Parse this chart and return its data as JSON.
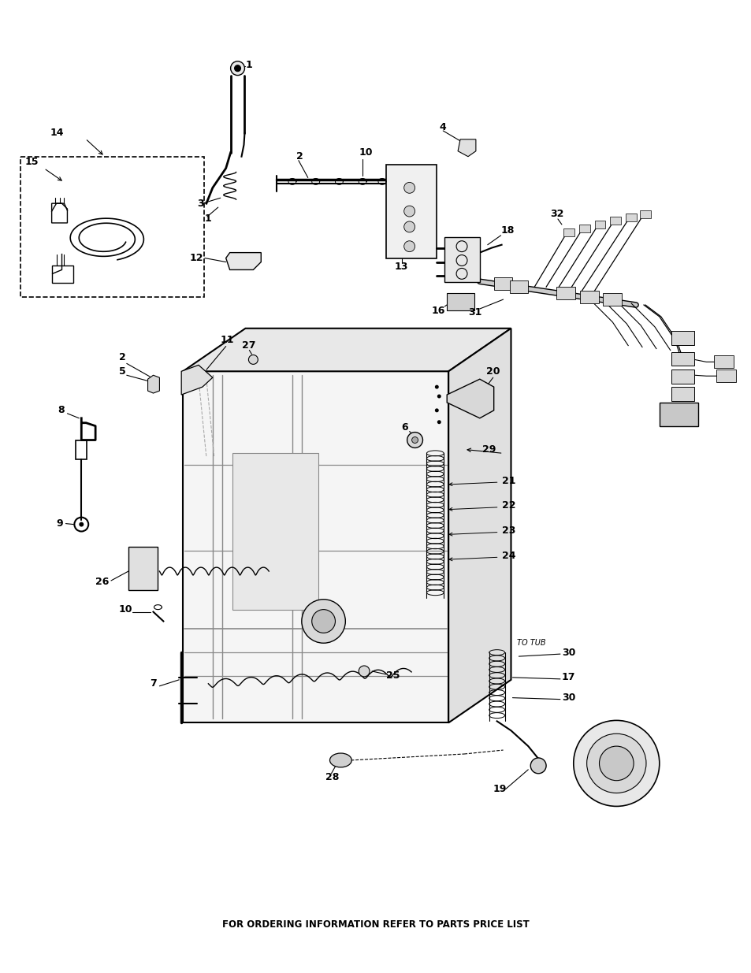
{
  "footer_text": "FOR ORDERING INFORMATION REFER TO PARTS PRICE LIST",
  "footer_fontsize": 8.5,
  "bg_color": "#ffffff",
  "fig_width": 9.54,
  "fig_height": 12.35
}
